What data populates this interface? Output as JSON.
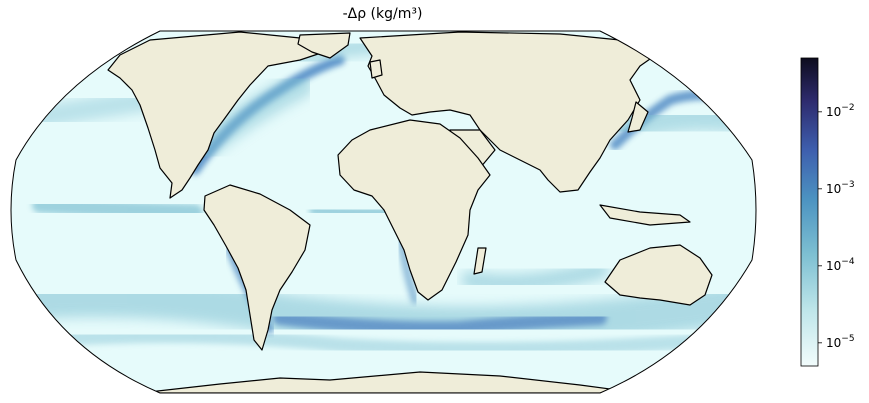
{
  "title": "-Δρ (kg/m³)",
  "colorbar": {
    "scale": "log",
    "range": [
      5e-06,
      0.05
    ],
    "ticks": [
      {
        "base": "10",
        "exp": "−2",
        "value": 0.01
      },
      {
        "base": "10",
        "exp": "−3",
        "value": 0.001
      },
      {
        "base": "10",
        "exp": "−4",
        "value": 0.0001
      },
      {
        "base": "10",
        "exp": "−5",
        "value": 1e-05
      }
    ],
    "colormap": [
      "#f2fcfc",
      "#bfe6ea",
      "#7ec0d2",
      "#4c93c1",
      "#3e5fae",
      "#2e2b6e",
      "#0d0c1e"
    ]
  },
  "map": {
    "projection": "robinson",
    "ocean_color": "#e6fbfb",
    "land_color": "#efedd9",
    "coastline_color": "#000000",
    "high_value_color": "#4a86c0"
  }
}
